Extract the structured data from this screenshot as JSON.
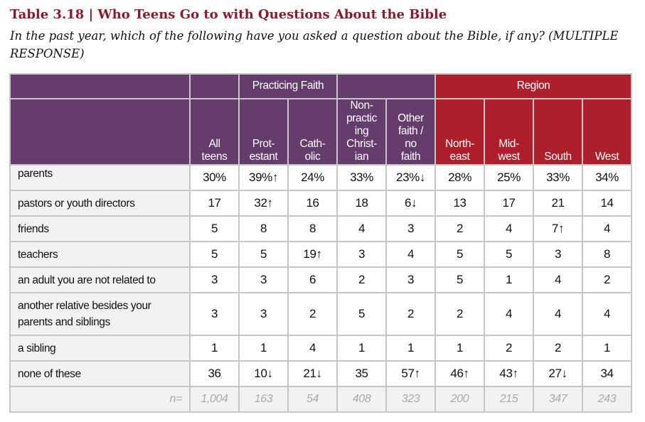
{
  "title": "Table 3.18 | Who Teens Go to with Questions About the Bible",
  "subtitle": "In the past year, which of the following have you asked a question about the Bible, if any? (MULTIPLE RESPONSE)",
  "groups": {
    "practicing": "Practicing Faith",
    "region": "Region"
  },
  "columns": [
    [
      "All",
      "teens"
    ],
    [
      "Prot-",
      "estant"
    ],
    [
      "Cath-",
      "olic"
    ],
    [
      "Non-",
      "practic",
      "ing",
      "Christ-",
      "ian"
    ],
    [
      "Other",
      "faith /",
      "no",
      "faith"
    ],
    [
      "North-",
      "east"
    ],
    [
      "Mid-",
      "west"
    ],
    [
      "South"
    ],
    [
      "West"
    ]
  ],
  "rows": [
    {
      "label": "parents",
      "values": [
        "30%",
        "39%↑",
        "24%",
        "33%",
        "23%↓",
        "28%",
        "25%",
        "33%",
        "34%"
      ]
    },
    {
      "label": "pastors or youth directors",
      "values": [
        "17",
        "32↑",
        "16",
        "18",
        "6↓",
        "13",
        "17",
        "21",
        "14"
      ]
    },
    {
      "label": "friends",
      "values": [
        "5",
        "8",
        "8",
        "4",
        "3",
        "2",
        "4",
        "7↑",
        "4"
      ]
    },
    {
      "label": "teachers",
      "values": [
        "5",
        "5",
        "19↑",
        "3",
        "4",
        "5",
        "5",
        "3",
        "8"
      ]
    },
    {
      "label": "an adult you are not related to",
      "values": [
        "3",
        "3",
        "6",
        "2",
        "3",
        "5",
        "1",
        "4",
        "2"
      ]
    },
    {
      "label": "another relative besides your parents and siblings",
      "values": [
        "3",
        "3",
        "2",
        "5",
        "2",
        "2",
        "4",
        "4",
        "4"
      ]
    },
    {
      "label": "a sibling",
      "values": [
        "1",
        "1",
        "4",
        "1",
        "1",
        "1",
        "2",
        "2",
        "1"
      ]
    },
    {
      "label": "none of these",
      "values": [
        "36",
        "10↓",
        "21↓",
        "35",
        "57↑",
        "46↑",
        "43↑",
        "27↓",
        "34"
      ]
    }
  ],
  "n_label": "n=",
  "n_values": [
    "1,004",
    "163",
    "54",
    "408",
    "323",
    "200",
    "215",
    "347",
    "243"
  ],
  "colors": {
    "purple": "#653d6c",
    "red": "#ad1f2b",
    "title": "#8b1a2b"
  }
}
